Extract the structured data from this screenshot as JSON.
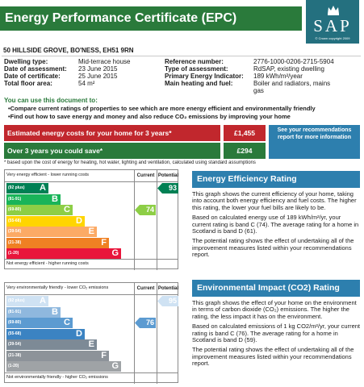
{
  "header": {
    "title": "Energy Performance Certificate (EPC)",
    "logo_text": "SAP",
    "logo_caption": "© Crown copyright 2009"
  },
  "address": "50 HILLSIDE GROVE, BO'NESS, EH51 9RN",
  "details_left": [
    {
      "key": "Dwelling type:",
      "value": "Mid-terrace house"
    },
    {
      "key": "Date of assessment:",
      "value": "23 June 2015"
    },
    {
      "key": "Date of certificate:",
      "value": "25 June 2015"
    },
    {
      "key": "Total floor area:",
      "value": "54 m²"
    }
  ],
  "details_right": [
    {
      "key": "Reference number:",
      "value": "2776-1000-0206-2715-5904"
    },
    {
      "key": "Type of assessment:",
      "value": "RdSAP, existing dwelling"
    },
    {
      "key": "Primary Energy Indicator:",
      "value": "189 kWh/m²/year"
    },
    {
      "key": "Main heating and fuel:",
      "value": "Boiler and radiators, mains"
    },
    {
      "key": "",
      "value": "gas"
    }
  ],
  "use_doc": {
    "title": "You can use this document to:",
    "bullets": [
      "Compare current ratings of properties to see which are more energy efficient and environmentally friendly",
      "Find out how to save energy and money and also reduce CO₂ emissions by improving your home"
    ]
  },
  "costs": {
    "estimated_label": "Estimated energy costs for your home for 3 years*",
    "estimated_value": "£1,455",
    "save_label": "Over 3 years you could save*",
    "save_value": "£294",
    "more_info": "See your recommendations report for more information",
    "footnote": "* based upon the cost of energy for heating, hot water, lighting and ventilation, calculated using standard assumptions",
    "colors": {
      "estimated": "#c1272d",
      "save": "#2a7a3b",
      "more": "#2d7fae"
    }
  },
  "efficiency_graph": {
    "top_label": "Very energy efficient - lower running costs",
    "bottom_label": "Not energy efficient - higher running costs",
    "col_current": "Current",
    "col_potential": "Potential",
    "current": "74",
    "potential": "93",
    "current_band": "C",
    "potential_band": "A",
    "bands": [
      {
        "range": "(92 plus)",
        "letter": "A",
        "color": "#008054"
      },
      {
        "range": "(81-91)",
        "letter": "B",
        "color": "#19b459"
      },
      {
        "range": "(69-80)",
        "letter": "C",
        "color": "#8dce46"
      },
      {
        "range": "(55-68)",
        "letter": "D",
        "color": "#ffd500"
      },
      {
        "range": "(39-54)",
        "letter": "E",
        "color": "#fcaa65"
      },
      {
        "range": "(21-38)",
        "letter": "F",
        "color": "#ef8023"
      },
      {
        "range": "(1-20)",
        "letter": "G",
        "color": "#e9153b"
      }
    ]
  },
  "impact_graph": {
    "top_label": "Very environmentally friendly - lower CO₂ emissions",
    "bottom_label": "Not environmentally friendly - higher CO₂ emissions",
    "col_current": "Current",
    "col_potential": "Potential",
    "current": "76",
    "potential": "95",
    "current_band": "C",
    "potential_band": "A",
    "bands": [
      {
        "range": "(92 plus)",
        "letter": "A",
        "color": "#cfe2f3"
      },
      {
        "range": "(81-91)",
        "letter": "B",
        "color": "#8fb8de"
      },
      {
        "range": "(69-80)",
        "letter": "C",
        "color": "#5c9bd1"
      },
      {
        "range": "(55-68)",
        "letter": "D",
        "color": "#3b83c2"
      },
      {
        "range": "(39-54)",
        "letter": "E",
        "color": "#7d8a96"
      },
      {
        "range": "(21-38)",
        "letter": "F",
        "color": "#8d9399"
      },
      {
        "range": "(1-20)",
        "letter": "G",
        "color": "#9fa3a6"
      }
    ]
  },
  "efficiency_panel": {
    "title": "Energy Efficiency Rating",
    "p1": "This graph shows the current efficiency of your home, taking into account both energy efficiency and fuel costs. The higher this rating, the lower your fuel bills are likely to be.",
    "p2": "Based on calculated energy use of 189 kWh/m²/yr, your current rating is band C (74). The average rating for a home in Scotland is band D (61).",
    "p3": "The potential rating shows the effect of undertaking all of the improvement measures listed within your recommendations report."
  },
  "impact_panel": {
    "title": "Environmental Impact (CO2) Rating",
    "p1": "This graph shows the effect of your home on the environment in terms of carbon dioxide (CO₂) emissions. The higher the rating, the less impact it has on the environment.",
    "p2": "Based on calculated emissions of 1 kg CO2/m²/yr, your current rating is band C (76). The average rating for a home in Scotland is band D (59).",
    "p3": "The potential rating shows the effect of undertaking all of the improvement measures listed within your recommendations report."
  }
}
